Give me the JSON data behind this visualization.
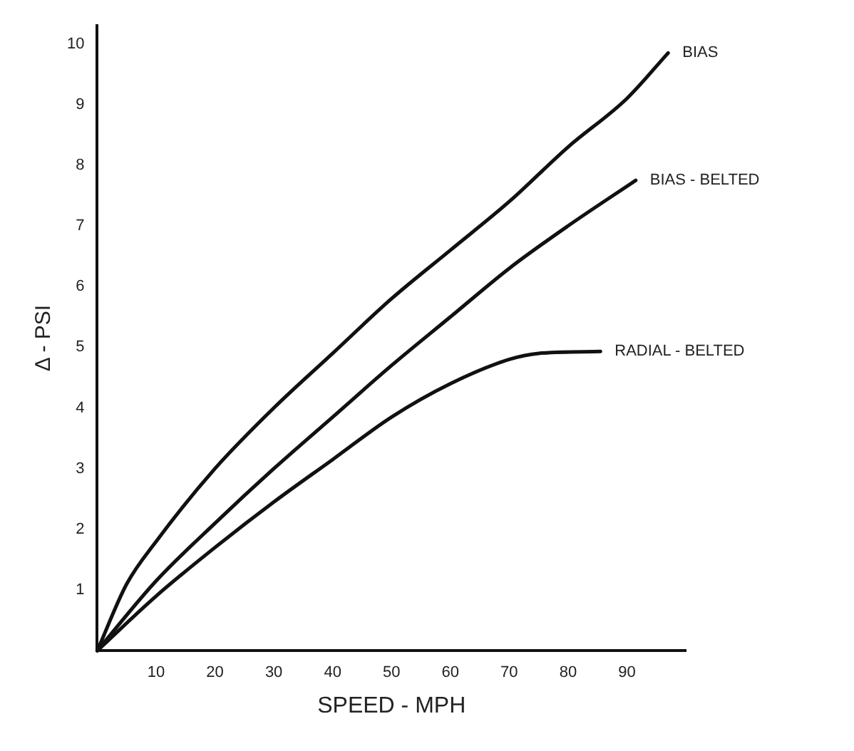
{
  "chart_data": {
    "type": "line",
    "xlabel": "SPEED - MPH",
    "ylabel": "Δ - PSI",
    "xlim": [
      0,
      100
    ],
    "xticks": [
      10,
      20,
      30,
      40,
      50,
      60,
      70,
      80,
      90
    ],
    "ylim": [
      0,
      10.3
    ],
    "yticks": [
      1,
      2,
      3,
      4,
      5,
      6,
      7,
      8,
      9,
      10
    ],
    "grid": false,
    "legend": false,
    "marker": "none",
    "line_style": "solid",
    "series": [
      {
        "name": "BIAS",
        "color": "#111111",
        "x": [
          0,
          5,
          10,
          20,
          30,
          40,
          50,
          60,
          70,
          80,
          90,
          97
        ],
        "values": [
          0,
          1.1,
          1.8,
          3.0,
          4.0,
          4.9,
          5.8,
          6.6,
          7.4,
          8.3,
          9.1,
          9.85
        ]
      },
      {
        "name": "BIAS - BELTED",
        "color": "#111111",
        "x": [
          0,
          10,
          20,
          30,
          40,
          50,
          60,
          70,
          80,
          91.5
        ],
        "values": [
          0,
          1.15,
          2.1,
          3.0,
          3.85,
          4.7,
          5.5,
          6.3,
          7.0,
          7.75
        ]
      },
      {
        "name": "RADIAL - BELTED",
        "color": "#111111",
        "x": [
          0,
          10,
          20,
          30,
          40,
          50,
          60,
          70,
          75,
          85.5
        ],
        "values": [
          0,
          0.9,
          1.7,
          2.45,
          3.15,
          3.85,
          4.4,
          4.8,
          4.9,
          4.93
        ]
      }
    ]
  }
}
